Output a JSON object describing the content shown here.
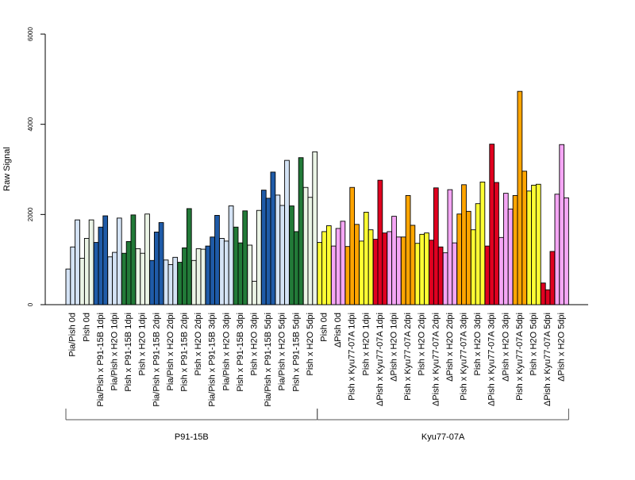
{
  "chart_data": {
    "type": "bar",
    "ylabel": "Raw Signal",
    "ylim": [
      0,
      6000
    ],
    "yticks": [
      0,
      2000,
      4000,
      6000
    ],
    "grid": false,
    "legend": "none",
    "bars_per_group": 3,
    "categories": [
      "Pia/Pish 0d",
      "Pish 0d",
      "Pia/Pish x P91-15B 1dpi",
      "Pia/Pish x H2O 1dpi",
      "Pish x P91-15B 1dpi",
      "Pish x H2O 1dpi",
      "Pia/Pish x P91-15B 2dpi",
      "Pia/Pish x H2O 2dpi",
      "Pish x P91-15B 2dpi",
      "Pish x H2O 2dpi",
      "Pia/Pish x P91-15B 3dpi",
      "Pia/Pish x H2O 3dpi",
      "Pish x P91-15B 3dpi",
      "Pish x H2O 3dpi",
      "Pia/Pish x P91-15B 5dpi",
      "Pia/Pish x H2O 5dpi",
      "Pish x P91-15B 5dpi",
      "Pish x H2O 5dpi",
      "Pish 0d",
      "ΔPish 0d",
      "Pish x Kyu77-07A 1dpi",
      "Pish x H2O 1dpi",
      "ΔPish x Kyu77-07A 1dpi",
      "ΔPish x H2O 1dpi",
      "Pish x Kyu77-07A 2dpi",
      "Pish x H2O 2dpi",
      "ΔPish x Kyu77-07A 2dpi",
      "ΔPish x H2O 2dpi",
      "Pish x Kyu77-07A 3dpi",
      "Pish x H2O 3dpi",
      "ΔPish x Kyu77-07A 3dpi",
      "ΔPish x H2O 3dpi",
      "Pish x Kyu77-07A 5dpi",
      "Pish x H2O 5dpi",
      "ΔPish x Kyu77-07A 5dpi",
      "ΔPish x H2O 5dpi"
    ],
    "colors": [
      "#d4e3f5",
      "#ebf4e6",
      "#1f5ba8",
      "#d4e3f5",
      "#227a38",
      "#ebf4e6",
      "#1f5ba8",
      "#d4e3f5",
      "#227a38",
      "#ebf4e6",
      "#1f5ba8",
      "#d4e3f5",
      "#227a38",
      "#ebf4e6",
      "#1f5ba8",
      "#d4e3f5",
      "#227a38",
      "#ebf4e6",
      "#ffff33",
      "#f5a6f5",
      "#ffa500",
      "#ffff33",
      "#e00020",
      "#f5a6f5",
      "#ffa500",
      "#ffff33",
      "#e00020",
      "#f5a6f5",
      "#ffa500",
      "#ffff33",
      "#e00020",
      "#f5a6f5",
      "#ffa500",
      "#ffff33",
      "#e00020",
      "#f5a6f5"
    ],
    "values": [
      [
        790,
        1280,
        1880
      ],
      [
        1030,
        1470,
        1880
      ],
      [
        1380,
        1720,
        1970
      ],
      [
        1060,
        1160,
        1920
      ],
      [
        1140,
        1400,
        1990
      ],
      [
        1240,
        1140,
        2010
      ],
      [
        980,
        1610,
        1820
      ],
      [
        990,
        890,
        1050
      ],
      [
        940,
        1260,
        2130
      ],
      [
        980,
        1240,
        1230
      ],
      [
        1300,
        1500,
        1980
      ],
      [
        1470,
        1410,
        2190
      ],
      [
        1720,
        1370,
        2080
      ],
      [
        1320,
        520,
        2090
      ],
      [
        2540,
        2360,
        2940
      ],
      [
        2430,
        2200,
        3200
      ],
      [
        2190,
        1620,
        3260
      ],
      [
        2600,
        2380,
        3390
      ],
      [
        1380,
        1620,
        1750
      ],
      [
        1300,
        1690,
        1850
      ],
      [
        1290,
        2600,
        1780
      ],
      [
        1410,
        2050,
        1660
      ],
      [
        1450,
        2760,
        1590
      ],
      [
        1620,
        1960,
        1500
      ],
      [
        1500,
        2420,
        1760
      ],
      [
        1360,
        1560,
        1590
      ],
      [
        1430,
        2590,
        1280
      ],
      [
        1150,
        2550,
        1370
      ],
      [
        2010,
        2660,
        2070
      ],
      [
        1660,
        2240,
        2720
      ],
      [
        1300,
        3560,
        2710
      ],
      [
        1490,
        2470,
        2120
      ],
      [
        2420,
        4730,
        2960
      ],
      [
        2520,
        2650,
        2670
      ],
      [
        480,
        330,
        1180
      ],
      [
        2450,
        3550,
        2370
      ]
    ],
    "group_labels": [
      "P91-15B",
      "Kyu77-07A"
    ],
    "group_spans": [
      [
        0,
        17
      ],
      [
        18,
        35
      ]
    ]
  }
}
